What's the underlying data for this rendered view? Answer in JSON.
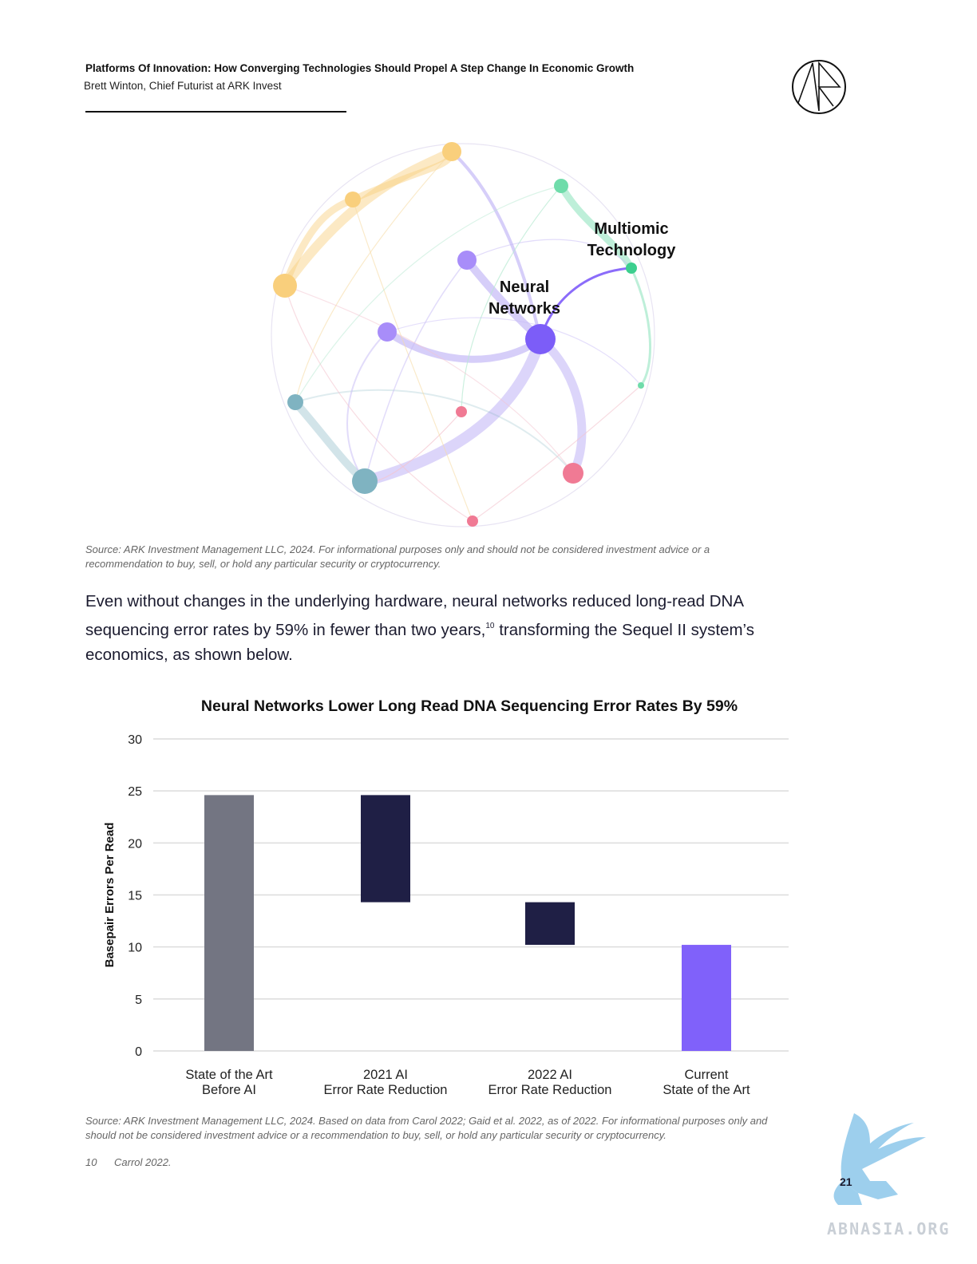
{
  "header": {
    "title": "Platforms Of Innovation: How Converging Technologies Should Propel A Step Change In Economic Growth",
    "subtitle": "Brett Winton, Chief Futurist at ARK Invest"
  },
  "network_graph": {
    "labels": {
      "multiomic": [
        "Multiomic",
        "Technology"
      ],
      "neural": [
        "Neural",
        "Networks"
      ]
    },
    "colors": {
      "yellow": "#f9cf7c",
      "purple": "#8b6cfa",
      "green": "#6fdcaa",
      "teal": "#7fb3c1",
      "pink": "#f07a94"
    }
  },
  "source_1": {
    "line1": "Source: ARK Investment Management LLC, 2024. For informational purposes only and should not be considered investment advice or a",
    "line2": "recommendation to buy, sell, or hold any particular security or cryptocurrency."
  },
  "body": {
    "text_before": "Even without changes in the underlying hardware, neural networks reduced long-read DNA sequencing error rates by 59% in fewer than two years,",
    "footnote_ref": "10",
    "text_after": " transforming the Sequel II system’s economics, as shown below."
  },
  "chart_data": {
    "type": "bar",
    "subtype": "waterfall",
    "title": "Neural Networks Lower Long Read DNA Sequencing Error Rates By 59%",
    "ylabel": "Basepair Errors Per Read",
    "xlabel": "",
    "ylim": [
      0,
      30
    ],
    "yticks": [
      0,
      5,
      10,
      15,
      20,
      25,
      30
    ],
    "grid": true,
    "categories": [
      [
        "State of the Art",
        "Before AI"
      ],
      [
        "2021 AI",
        "Error Rate Reduction"
      ],
      [
        "2022 AI",
        "Error Rate Reduction"
      ],
      [
        "Current",
        "State of the Art"
      ]
    ],
    "bars": [
      {
        "low": 0,
        "high": 24.6,
        "color": "#737582"
      },
      {
        "low": 14.3,
        "high": 24.6,
        "color": "#1f1f45"
      },
      {
        "low": 10.2,
        "high": 14.3,
        "color": "#1f1f45"
      },
      {
        "low": 0,
        "high": 10.2,
        "color": "#8061fa"
      }
    ]
  },
  "source_2": {
    "line1": "Source: ARK Investment Management LLC, 2024. Based on data from Carol 2022;  Gaid et al. 2022, as of 2022. For informational purposes only and",
    "line2": "should not be considered investment advice or a recommendation to buy, sell, or hold any particular security or cryptocurrency."
  },
  "footnote": {
    "number": "10",
    "text": "Carrol 2022."
  },
  "page_number": "21",
  "watermark": "ABNASIA.ORG"
}
